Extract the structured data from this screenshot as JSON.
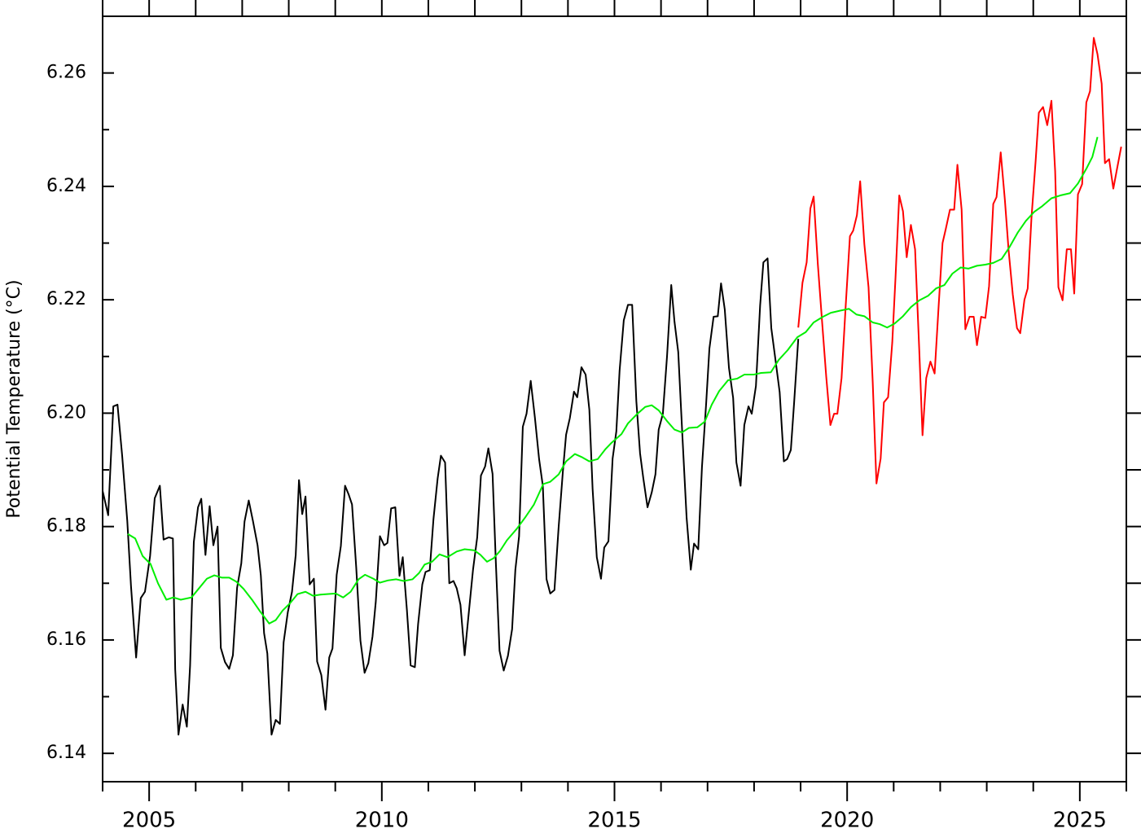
{
  "chart_data": {
    "type": "line",
    "ylabel": "Potential Temperature (°C)",
    "xlim": [
      2004,
      2026
    ],
    "ylim": [
      6.135,
      6.27
    ],
    "xticks": [
      2005,
      2010,
      2015,
      2020,
      2025
    ],
    "xminorticks": [
      2004,
      2006,
      2007,
      2008,
      2009,
      2011,
      2012,
      2013,
      2014,
      2016,
      2017,
      2018,
      2019,
      2021,
      2022,
      2023,
      2024,
      2026
    ],
    "yticks": [
      6.14,
      6.16,
      6.18,
      {
        "value": 6.2,
        "label": "6.20"
      },
      6.22,
      6.24,
      6.26
    ],
    "yminorticks": [
      6.15,
      6.17,
      6.19,
      6.21,
      6.23,
      6.25
    ],
    "grid": false,
    "series": [
      {
        "color": "#000000",
        "x": [
          2004.0,
          2004.12,
          2004.23,
          2004.32,
          2004.42,
          2004.53,
          2004.61,
          2004.72,
          2004.82,
          2004.91,
          2005.02,
          2005.12,
          2005.23,
          2005.31,
          2005.42,
          2005.51,
          2005.56,
          2005.63,
          2005.72,
          2005.81,
          2005.88,
          2005.96,
          2006.05,
          2006.12,
          2006.21,
          2006.3,
          2006.38,
          2006.47,
          2006.54,
          2006.63,
          2006.72,
          2006.8,
          2006.89,
          2006.98,
          2007.05,
          2007.14,
          2007.23,
          2007.33,
          2007.4,
          2007.47,
          2007.54,
          2007.63,
          2007.72,
          2007.81,
          2007.89,
          2007.98,
          2008.07,
          2008.15,
          2008.22,
          2008.29,
          2008.36,
          2008.45,
          2008.54,
          2008.61,
          2008.7,
          2008.79,
          2008.87,
          2008.94,
          2009.03,
          2009.12,
          2009.21,
          2009.29,
          2009.36,
          2009.45,
          2009.54,
          2009.63,
          2009.71,
          2009.8,
          2009.87,
          2009.96,
          2010.05,
          2010.12,
          2010.2,
          2010.29,
          2010.38,
          2010.45,
          2010.54,
          2010.62,
          2010.71,
          2010.78,
          2010.87,
          2010.94,
          2011.03,
          2011.11,
          2011.2,
          2011.27,
          2011.36,
          2011.45,
          2011.54,
          2011.61,
          2011.69,
          2011.78,
          2011.85,
          2011.96,
          2012.05,
          2012.13,
          2012.22,
          2012.29,
          2012.38,
          2012.45,
          2012.53,
          2012.62,
          2012.71,
          2012.8,
          2012.87,
          2012.95,
          2013.03,
          2013.11,
          2013.2,
          2013.29,
          2013.38,
          2013.46,
          2013.54,
          2013.62,
          2013.71,
          2013.8,
          2013.89,
          2013.96,
          2014.04,
          2014.13,
          2014.2,
          2014.29,
          2014.38,
          2014.46,
          2014.53,
          2014.62,
          2014.71,
          2014.78,
          2014.87,
          2014.96,
          2015.04,
          2015.11,
          2015.2,
          2015.29,
          2015.38,
          2015.47,
          2015.55,
          2015.62,
          2015.71,
          2015.8,
          2015.88,
          2015.95,
          2016.04,
          2016.13,
          2016.22,
          2016.29,
          2016.37,
          2016.46,
          2016.55,
          2016.64,
          2016.71,
          2016.8,
          2016.88,
          2016.97,
          2017.04,
          2017.13,
          2017.22,
          2017.29,
          2017.37,
          2017.46,
          2017.55,
          2017.62,
          2017.71,
          2017.79,
          2017.88,
          2017.95,
          2018.04,
          2018.13,
          2018.2,
          2018.29,
          2018.37,
          2018.46,
          2018.55,
          2018.64,
          2018.71,
          2018.79,
          2018.86,
          2018.95
        ],
        "values": [
          6.1863,
          6.182,
          6.2012,
          6.2015,
          6.1925,
          6.181,
          6.1695,
          6.1569,
          6.1674,
          6.1685,
          6.1748,
          6.185,
          6.1872,
          6.1777,
          6.1781,
          6.1779,
          6.1548,
          6.1433,
          6.1486,
          6.1447,
          6.1555,
          6.1773,
          6.1834,
          6.1849,
          6.175,
          6.1836,
          6.1767,
          6.18,
          6.1586,
          6.1561,
          6.1549,
          6.1573,
          6.1692,
          6.1735,
          6.1809,
          6.1846,
          6.181,
          6.1767,
          6.1714,
          6.1612,
          6.1576,
          6.1433,
          6.1459,
          6.1452,
          6.1596,
          6.1649,
          6.1685,
          6.175,
          6.1882,
          6.1822,
          6.1853,
          6.1698,
          6.1708,
          6.1562,
          6.1538,
          6.1477,
          6.1569,
          6.1585,
          6.1715,
          6.1766,
          6.1872,
          6.1856,
          6.1839,
          6.1728,
          6.1599,
          6.1542,
          6.1559,
          6.1606,
          6.1667,
          6.1783,
          6.1767,
          6.1771,
          6.1832,
          6.1834,
          6.1713,
          6.1746,
          6.1652,
          6.1555,
          6.1552,
          6.1628,
          6.1698,
          6.172,
          6.1723,
          6.1813,
          6.1885,
          6.1925,
          6.1913,
          6.17,
          6.1704,
          6.1691,
          6.1662,
          6.1573,
          6.1632,
          6.1724,
          6.1781,
          6.189,
          6.1906,
          6.1938,
          6.1893,
          6.1738,
          6.1581,
          6.1546,
          6.1572,
          6.1619,
          6.1724,
          6.1783,
          6.1976,
          6.1999,
          6.2057,
          6.1992,
          6.1919,
          6.1872,
          6.1707,
          6.1682,
          6.1688,
          6.1799,
          6.1896,
          6.1962,
          6.1991,
          6.2038,
          6.2028,
          6.2081,
          6.2068,
          6.2006,
          6.1866,
          6.1746,
          6.1708,
          6.1763,
          6.1774,
          6.192,
          6.1968,
          6.2075,
          6.2164,
          6.2191,
          6.2191,
          6.2021,
          6.1929,
          6.1885,
          6.1834,
          6.186,
          6.1892,
          6.1971,
          6.1999,
          6.2101,
          6.2226,
          6.2161,
          6.2108,
          6.1959,
          6.1816,
          6.1724,
          6.177,
          6.176,
          6.1905,
          6.2017,
          6.2114,
          6.217,
          6.2171,
          6.2229,
          6.2183,
          6.208,
          6.2027,
          6.1913,
          6.1872,
          6.1979,
          6.2012,
          6.1999,
          6.2048,
          6.219,
          6.2266,
          6.2273,
          6.215,
          6.2094,
          6.2037,
          6.1915,
          6.1919,
          6.1935,
          6.2018,
          6.2131
        ]
      },
      {
        "color": "#ff0000",
        "x": [
          2018.95,
          2019.04,
          2019.13,
          2019.21,
          2019.28,
          2019.37,
          2019.46,
          2019.55,
          2019.64,
          2019.72,
          2019.79,
          2019.88,
          2019.97,
          2020.06,
          2020.13,
          2020.21,
          2020.28,
          2020.37,
          2020.46,
          2020.55,
          2020.63,
          2020.72,
          2020.79,
          2020.88,
          2020.97,
          2021.04,
          2021.12,
          2021.2,
          2021.28,
          2021.37,
          2021.46,
          2021.55,
          2021.62,
          2021.7,
          2021.79,
          2021.88,
          2021.97,
          2022.05,
          2022.12,
          2022.21,
          2022.3,
          2022.37,
          2022.46,
          2022.54,
          2022.63,
          2022.72,
          2022.79,
          2022.88,
          2022.97,
          2023.05,
          2023.14,
          2023.21,
          2023.3,
          2023.39,
          2023.47,
          2023.56,
          2023.65,
          2023.72,
          2023.81,
          2023.88,
          2023.96,
          2024.05,
          2024.12,
          2024.21,
          2024.3,
          2024.39,
          2024.47,
          2024.54,
          2024.63,
          2024.72,
          2024.81,
          2024.88,
          2024.96,
          2025.05,
          2025.14,
          2025.22,
          2025.3,
          2025.38,
          2025.47,
          2025.54,
          2025.63,
          2025.72,
          2025.8,
          2025.89
        ],
        "values": [
          6.2151,
          6.223,
          6.2266,
          6.2361,
          6.2382,
          6.2263,
          6.2163,
          6.2065,
          6.1979,
          6.1999,
          6.1999,
          6.2062,
          6.2191,
          6.2312,
          6.2322,
          6.2349,
          6.2409,
          6.2298,
          6.2222,
          6.2054,
          6.1876,
          6.192,
          6.2019,
          6.2028,
          6.2125,
          6.224,
          6.2384,
          6.2356,
          6.2275,
          6.2332,
          6.2289,
          6.2111,
          6.1961,
          6.2062,
          6.2091,
          6.207,
          6.2194,
          6.23,
          6.2325,
          6.2359,
          6.2359,
          6.2438,
          6.2359,
          6.2148,
          6.217,
          6.217,
          6.212,
          6.217,
          6.2168,
          6.2224,
          6.2369,
          6.2381,
          6.246,
          6.2376,
          6.2287,
          6.2209,
          6.215,
          6.2141,
          6.22,
          6.222,
          6.2343,
          6.2444,
          6.253,
          6.254,
          6.2508,
          6.2551,
          6.2427,
          6.2222,
          6.2199,
          6.2289,
          6.2289,
          6.2211,
          6.2386,
          6.2404,
          6.2548,
          6.2568,
          6.2662,
          6.2633,
          6.2581,
          6.2441,
          6.2448,
          6.2396,
          6.2431,
          6.247
        ]
      },
      {
        "color": "#00ee00",
        "x": [
          2004.54,
          2004.7,
          2004.86,
          2005.03,
          2005.19,
          2005.37,
          2005.52,
          2005.68,
          2005.91,
          2006.07,
          2006.24,
          2006.4,
          2006.56,
          2006.72,
          2006.87,
          2007.03,
          2007.21,
          2007.37,
          2007.58,
          2007.72,
          2007.87,
          2008.03,
          2008.19,
          2008.36,
          2008.52,
          2008.68,
          2008.85,
          2009.01,
          2009.17,
          2009.33,
          2009.5,
          2009.64,
          2009.82,
          2009.96,
          2010.13,
          2010.31,
          2010.47,
          2010.66,
          2010.8,
          2010.92,
          2011.08,
          2011.24,
          2011.41,
          2011.61,
          2011.78,
          2011.99,
          2012.12,
          2012.26,
          2012.4,
          2012.54,
          2012.69,
          2012.9,
          2013.08,
          2013.27,
          2013.47,
          2013.62,
          2013.8,
          2013.96,
          2014.15,
          2014.31,
          2014.46,
          2014.64,
          2014.8,
          2014.94,
          2015.15,
          2015.29,
          2015.48,
          2015.66,
          2015.8,
          2015.95,
          2016.13,
          2016.29,
          2016.45,
          2016.6,
          2016.78,
          2016.94,
          2017.09,
          2017.25,
          2017.44,
          2017.64,
          2017.79,
          2017.99,
          2018.15,
          2018.36,
          2018.53,
          2018.72,
          2018.93,
          2019.11,
          2019.28,
          2019.48,
          2019.65,
          2019.86,
          2020.04,
          2020.2,
          2020.37,
          2020.55,
          2020.7,
          2020.86,
          2021.02,
          2021.2,
          2021.37,
          2021.55,
          2021.74,
          2021.91,
          2022.09,
          2022.26,
          2022.44,
          2022.61,
          2022.79,
          2022.97,
          2023.14,
          2023.32,
          2023.49,
          2023.67,
          2023.84,
          2024.02,
          2024.19,
          2024.39,
          2024.58,
          2024.79,
          2024.96,
          2025.14,
          2025.27,
          2025.38
        ],
        "values": [
          6.1787,
          6.1779,
          6.1748,
          6.1734,
          6.17,
          6.1671,
          6.1675,
          6.1671,
          6.1675,
          6.1691,
          6.1708,
          6.1714,
          6.171,
          6.171,
          6.1703,
          6.169,
          6.1671,
          6.1652,
          6.1629,
          6.1635,
          6.1652,
          6.1665,
          6.1681,
          6.1685,
          6.1678,
          6.168,
          6.1681,
          6.1682,
          6.1675,
          6.1685,
          6.1707,
          6.1715,
          6.1708,
          6.1701,
          6.1705,
          6.1707,
          6.1704,
          6.1707,
          6.1718,
          6.1733,
          6.1738,
          6.1751,
          6.1746,
          6.1756,
          6.176,
          6.1758,
          6.175,
          6.1738,
          6.1744,
          6.1757,
          6.1776,
          6.1796,
          6.1816,
          6.1839,
          6.1875,
          6.1879,
          6.1892,
          6.1915,
          6.1928,
          6.1922,
          6.1915,
          6.1919,
          6.1936,
          6.1948,
          6.1963,
          6.1982,
          6.1998,
          6.2011,
          6.2014,
          6.2005,
          6.1986,
          6.1971,
          6.1966,
          6.1974,
          6.1975,
          6.1985,
          6.2015,
          6.2039,
          6.2058,
          6.2061,
          6.2068,
          6.2068,
          6.2071,
          6.2072,
          6.2094,
          6.2111,
          6.2134,
          6.2143,
          6.216,
          6.217,
          6.2177,
          6.2181,
          6.2184,
          6.2174,
          6.2171,
          6.216,
          6.2157,
          6.2151,
          6.2158,
          6.2171,
          6.2187,
          6.2199,
          6.2207,
          6.222,
          6.2226,
          6.2246,
          6.2257,
          6.2255,
          6.226,
          6.2262,
          6.2265,
          6.2272,
          6.2293,
          6.2319,
          6.2339,
          6.2355,
          6.2365,
          6.2379,
          6.2384,
          6.2388,
          6.2405,
          6.2431,
          6.2452,
          6.2487
        ]
      }
    ]
  }
}
